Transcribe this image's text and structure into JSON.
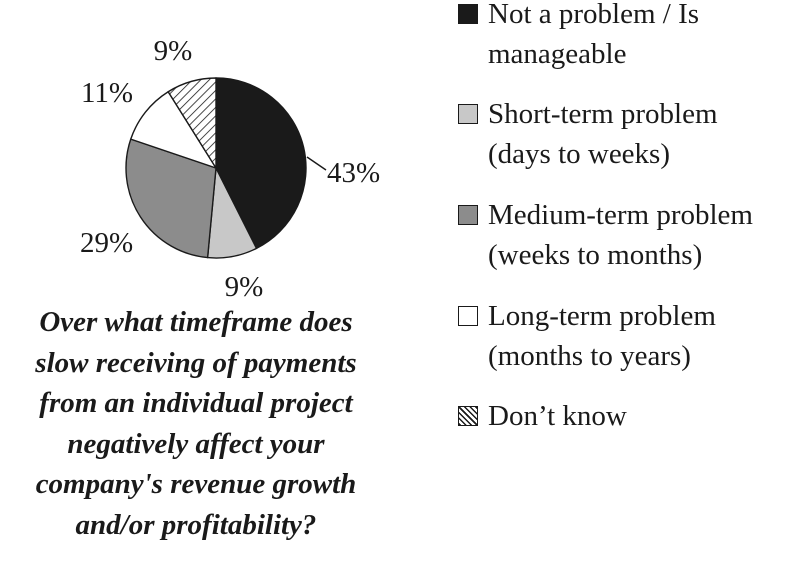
{
  "chart_data": {
    "type": "pie",
    "slices": [
      {
        "label": "Not a problem / Is manageable",
        "label_lines": [
          "Not a problem / Is",
          "manageable"
        ],
        "value": 43,
        "value_label": "43%",
        "color": "#1a1a1a",
        "pattern": "solid"
      },
      {
        "label": "Short-term problem (days to weeks)",
        "label_lines": [
          "Short-term problem",
          "(days to weeks)"
        ],
        "value": 9,
        "value_label": "9%",
        "color": "#c8c8c8",
        "pattern": "solid"
      },
      {
        "label": "Medium-term problem (weeks to months)",
        "label_lines": [
          "Medium-term problem",
          "(weeks to months)"
        ],
        "value": 29,
        "value_label": "29%",
        "color": "#8c8c8c",
        "pattern": "solid"
      },
      {
        "label": "Long-term problem (months to years)",
        "label_lines": [
          "Long-term problem",
          "(months to years)"
        ],
        "value": 11,
        "value_label": "11%",
        "color": "#ffffff",
        "pattern": "solid"
      },
      {
        "label": "Don’t know",
        "label_lines": [
          "Don’t know"
        ],
        "value": 9,
        "value_label": "9%",
        "color": "#ffffff",
        "pattern": "diagonal-hatch"
      }
    ],
    "legend_position": "right",
    "caption_lines": [
      "Over what timeframe does",
      "slow receiving of payments",
      "from an individual project",
      "negatively affect your",
      "company's revenue growth",
      "and/or profitability?"
    ]
  }
}
